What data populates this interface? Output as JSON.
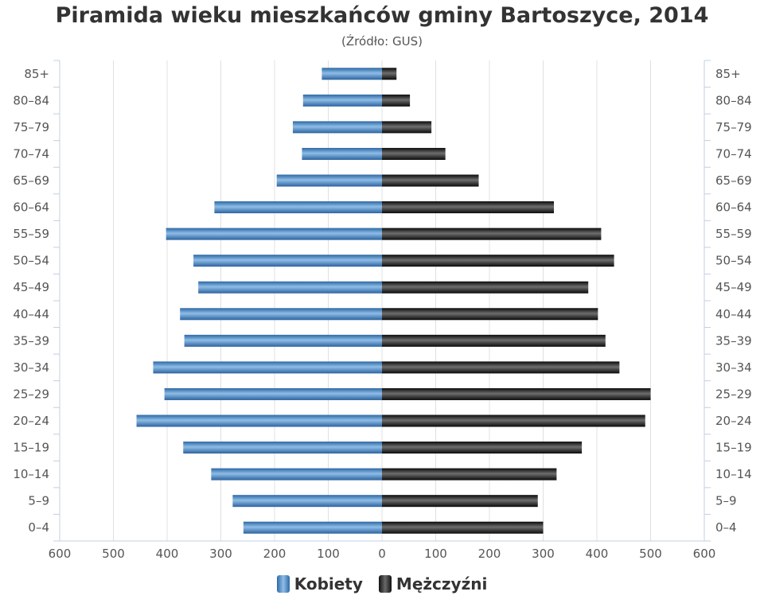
{
  "chart_data": {
    "type": "bar",
    "title": "Piramida wieku mieszkańców gminy Bartoszyce, 2014",
    "subtitle": "(Źródło: GUS)",
    "categories": [
      "85+",
      "80–84",
      "75–79",
      "70–74",
      "65–69",
      "60–64",
      "55–59",
      "50–54",
      "45–49",
      "40–44",
      "35–39",
      "30–34",
      "25–29",
      "20–24",
      "15–19",
      "10–14",
      "5–9",
      "0–4"
    ],
    "series": [
      {
        "name": "Kobiety",
        "color": "#3a78b8",
        "values": [
          112,
          147,
          166,
          149,
          196,
          312,
          402,
          351,
          342,
          376,
          368,
          426,
          405,
          457,
          370,
          318,
          278,
          258
        ]
      },
      {
        "name": "Mężczyźni",
        "color": "#1a1a1a",
        "values": [
          27,
          52,
          92,
          118,
          180,
          320,
          408,
          432,
          384,
          402,
          416,
          442,
          500,
          490,
          372,
          325,
          290,
          300
        ]
      }
    ],
    "x_ticks": [
      "600",
      "500",
      "400",
      "300",
      "200",
      "100",
      "0",
      "100",
      "200",
      "300",
      "400",
      "500",
      "600"
    ],
    "xlim": [
      -600,
      600
    ],
    "grid": true,
    "legend_position": "bottom"
  }
}
